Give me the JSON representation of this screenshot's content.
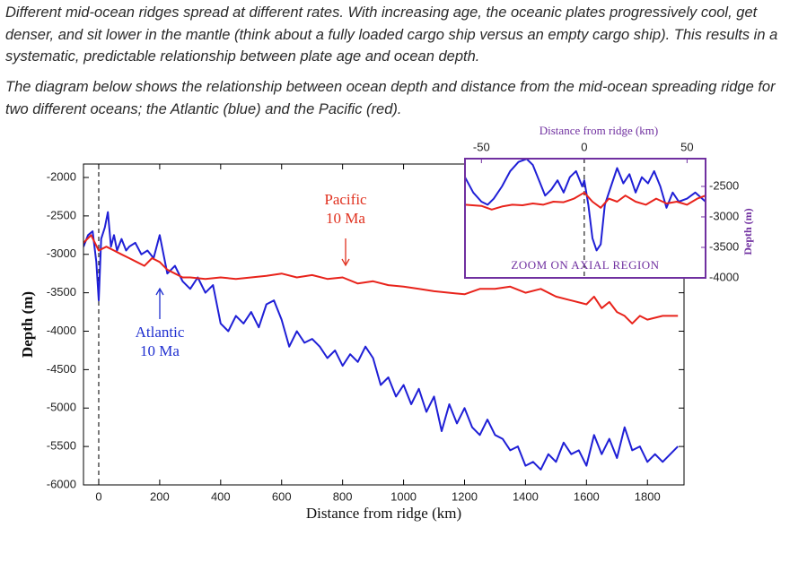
{
  "paragraphs": [
    "Different mid-ocean ridges spread at different rates. With increasing age, the oceanic plates progressively cool, get denser, and sit lower in the mantle (think about a fully loaded cargo ship versus an empty cargo ship). This results in a systematic, predictable relationship between plate age and ocean depth.",
    "The diagram below shows the relationship between ocean depth and distance from the mid-ocean spreading ridge for two different oceans; the Atlantic (blue) and the Pacific (red)."
  ],
  "chart_data": [
    {
      "type": "line",
      "xlabel": "Distance from ridge (km)",
      "ylabel": "Depth (m)",
      "xlim": [
        -50,
        1920
      ],
      "ylim": [
        -6000,
        -1825
      ],
      "xticks": [
        0,
        200,
        400,
        600,
        800,
        1000,
        1200,
        1400,
        1600,
        1800
      ],
      "yticks": [
        -2000,
        -2500,
        -3000,
        -3500,
        -4000,
        -4500,
        -5000,
        -5500,
        -6000
      ],
      "annotations": [
        {
          "lines": [
            "Pacific",
            "10 Ma"
          ],
          "color": "#e0301e"
        },
        {
          "lines": [
            "Atlantic",
            "10 Ma"
          ],
          "color": "#1f2fd0"
        }
      ],
      "series": [
        {
          "color": "#1f1fd6",
          "x": [
            -50,
            -35,
            -20,
            -8,
            0,
            8,
            20,
            30,
            40,
            50,
            60,
            75,
            90,
            100,
            120,
            140,
            160,
            180,
            200,
            225,
            250,
            275,
            300,
            325,
            350,
            375,
            400,
            425,
            450,
            475,
            500,
            525,
            550,
            575,
            600,
            625,
            650,
            675,
            700,
            725,
            750,
            775,
            800,
            825,
            850,
            875,
            900,
            925,
            950,
            975,
            1000,
            1025,
            1050,
            1075,
            1100,
            1125,
            1150,
            1175,
            1200,
            1225,
            1250,
            1275,
            1300,
            1325,
            1350,
            1375,
            1400,
            1425,
            1450,
            1475,
            1500,
            1525,
            1550,
            1575,
            1600,
            1625,
            1650,
            1675,
            1700,
            1725,
            1750,
            1775,
            1800,
            1825,
            1850,
            1875,
            1900
          ],
          "values": [
            -2900,
            -2750,
            -2700,
            -3100,
            -3600,
            -2800,
            -2650,
            -2450,
            -2900,
            -2750,
            -2950,
            -2800,
            -2950,
            -2900,
            -2850,
            -3000,
            -2950,
            -3050,
            -2750,
            -3250,
            -3150,
            -3350,
            -3450,
            -3300,
            -3500,
            -3400,
            -3900,
            -4000,
            -3800,
            -3900,
            -3750,
            -3950,
            -3650,
            -3600,
            -3850,
            -4200,
            -4000,
            -4150,
            -4100,
            -4200,
            -4350,
            -4250,
            -4450,
            -4300,
            -4400,
            -4200,
            -4350,
            -4700,
            -4600,
            -4850,
            -4700,
            -4950,
            -4750,
            -5050,
            -4850,
            -5300,
            -4950,
            -5200,
            -5000,
            -5250,
            -5350,
            -5150,
            -5350,
            -5400,
            -5550,
            -5500,
            -5750,
            -5700,
            -5800,
            -5600,
            -5700,
            -5450,
            -5600,
            -5550,
            -5750,
            -5350,
            -5600,
            -5400,
            -5650,
            -5250,
            -5550,
            -5500,
            -5700,
            -5600,
            -5700,
            -5600,
            -5500
          ]
        },
        {
          "color": "#e8231b",
          "x": [
            -50,
            -25,
            0,
            25,
            50,
            75,
            100,
            125,
            150,
            175,
            200,
            225,
            250,
            275,
            300,
            350,
            400,
            450,
            500,
            550,
            600,
            650,
            700,
            750,
            800,
            850,
            900,
            950,
            1000,
            1050,
            1100,
            1150,
            1200,
            1250,
            1300,
            1350,
            1400,
            1450,
            1500,
            1550,
            1600,
            1625,
            1650,
            1675,
            1700,
            1725,
            1750,
            1775,
            1800,
            1850,
            1900
          ],
          "values": [
            -2850,
            -2750,
            -2950,
            -2900,
            -2950,
            -3000,
            -3050,
            -3100,
            -3150,
            -3050,
            -3100,
            -3200,
            -3250,
            -3300,
            -3300,
            -3320,
            -3300,
            -3320,
            -3300,
            -3280,
            -3250,
            -3300,
            -3270,
            -3320,
            -3300,
            -3380,
            -3350,
            -3400,
            -3420,
            -3450,
            -3480,
            -3500,
            -3520,
            -3450,
            -3450,
            -3420,
            -3500,
            -3450,
            -3550,
            -3600,
            -3650,
            -3550,
            -3700,
            -3620,
            -3750,
            -3800,
            -3900,
            -3800,
            -3850,
            -3800,
            -3800
          ]
        }
      ]
    },
    {
      "type": "line",
      "xlabel": "Distance from ridge (km)",
      "ylabel": "Depth (m)",
      "annotation": "ZOOM ON AXIAL REGION",
      "xlim": [
        -58,
        59
      ],
      "ylim": [
        -4000,
        -2045
      ],
      "xticks": [
        -50,
        0,
        50
      ],
      "yticks": [
        -2500,
        -3000,
        -3500,
        -4000
      ],
      "series": [
        {
          "color": "#1f1fd6",
          "x": [
            -58,
            -54,
            -50,
            -47,
            -44,
            -40,
            -36,
            -32,
            -28,
            -25,
            -22,
            -19,
            -16,
            -13,
            -10,
            -7,
            -4,
            -1,
            0,
            2,
            4,
            6,
            8,
            10,
            13,
            16,
            19,
            22,
            25,
            28,
            31,
            34,
            37,
            40,
            43,
            46,
            50,
            54,
            59
          ],
          "values": [
            -2350,
            -2600,
            -2750,
            -2800,
            -2700,
            -2500,
            -2250,
            -2100,
            -2050,
            -2150,
            -2400,
            -2650,
            -2550,
            -2400,
            -2600,
            -2350,
            -2250,
            -2500,
            -2400,
            -2800,
            -3350,
            -3550,
            -3450,
            -2800,
            -2500,
            -2200,
            -2450,
            -2300,
            -2600,
            -2350,
            -2450,
            -2250,
            -2500,
            -2850,
            -2600,
            -2750,
            -2700,
            -2600,
            -2750
          ]
        },
        {
          "color": "#e8231b",
          "x": [
            -58,
            -50,
            -45,
            -40,
            -35,
            -30,
            -25,
            -20,
            -15,
            -10,
            -5,
            0,
            4,
            8,
            12,
            16,
            20,
            25,
            30,
            35,
            40,
            45,
            50,
            55,
            59
          ],
          "values": [
            -2800,
            -2820,
            -2880,
            -2830,
            -2800,
            -2810,
            -2780,
            -2800,
            -2750,
            -2760,
            -2700,
            -2600,
            -2750,
            -2850,
            -2700,
            -2750,
            -2650,
            -2750,
            -2800,
            -2700,
            -2780,
            -2750,
            -2800,
            -2700,
            -2650
          ]
        }
      ]
    }
  ]
}
